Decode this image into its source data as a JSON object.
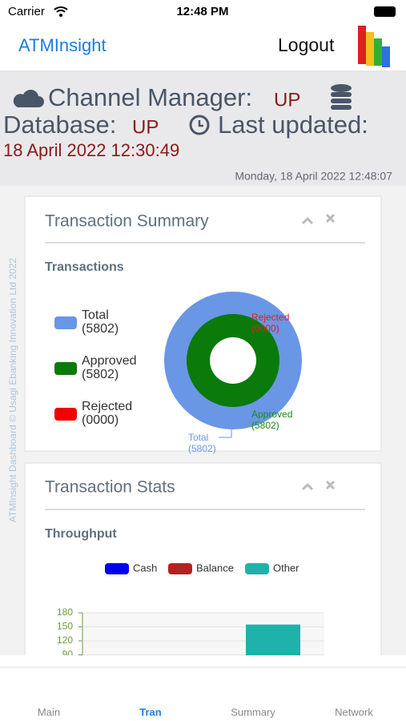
{
  "status_bar": {
    "carrier": "Carrier",
    "time": "12:48 PM"
  },
  "nav": {
    "title": "ATMInsight",
    "logout": "Logout"
  },
  "header": {
    "channel_label": "Channel Manager:",
    "channel_status": "UP",
    "database_label": "Database:",
    "database_status": "UP",
    "updated_label": "Last updated:",
    "updated_value": "18 April 2022 12:30:49",
    "current_time": "Monday, 18 April 2022 12:48:07"
  },
  "footer_note": "ATMInsight Dashboard © Usagi Ebanking Innovation Ltd 2022",
  "summary_panel": {
    "title": "Transaction Summary",
    "subtitle": "Transactions",
    "legend": [
      {
        "name": "Total",
        "count": "(5802)",
        "color": "#6a96e6"
      },
      {
        "name": "Approved",
        "count": "(5802)",
        "color": "#0a7a0a"
      },
      {
        "name": "Rejected",
        "count": "(0000)",
        "color": "#f00000"
      }
    ],
    "donut_labels": [
      {
        "name": "Rejected",
        "count": "(0000)"
      },
      {
        "name": "Approved",
        "count": "(5802)"
      },
      {
        "name": "Total",
        "count": "(5802)"
      }
    ]
  },
  "stats_panel": {
    "title": "Transaction Stats",
    "subtitle": "Throughput",
    "chart": {
      "type": "bar",
      "ylim": [
        0,
        180
      ],
      "yticks": [
        90,
        120,
        150,
        180
      ],
      "series": [
        {
          "name": "Cash",
          "color": "#0000ee",
          "values": [
            null
          ]
        },
        {
          "name": "Balance",
          "color": "#b22222",
          "values": [
            null
          ]
        },
        {
          "name": "Other",
          "color": "#20b2aa",
          "values": [
            155
          ]
        }
      ]
    }
  },
  "tabs": [
    {
      "label": "Main",
      "active": false
    },
    {
      "label": "Tran",
      "active": true
    },
    {
      "label": "Summary",
      "active": false
    },
    {
      "label": "Network",
      "active": false
    }
  ]
}
